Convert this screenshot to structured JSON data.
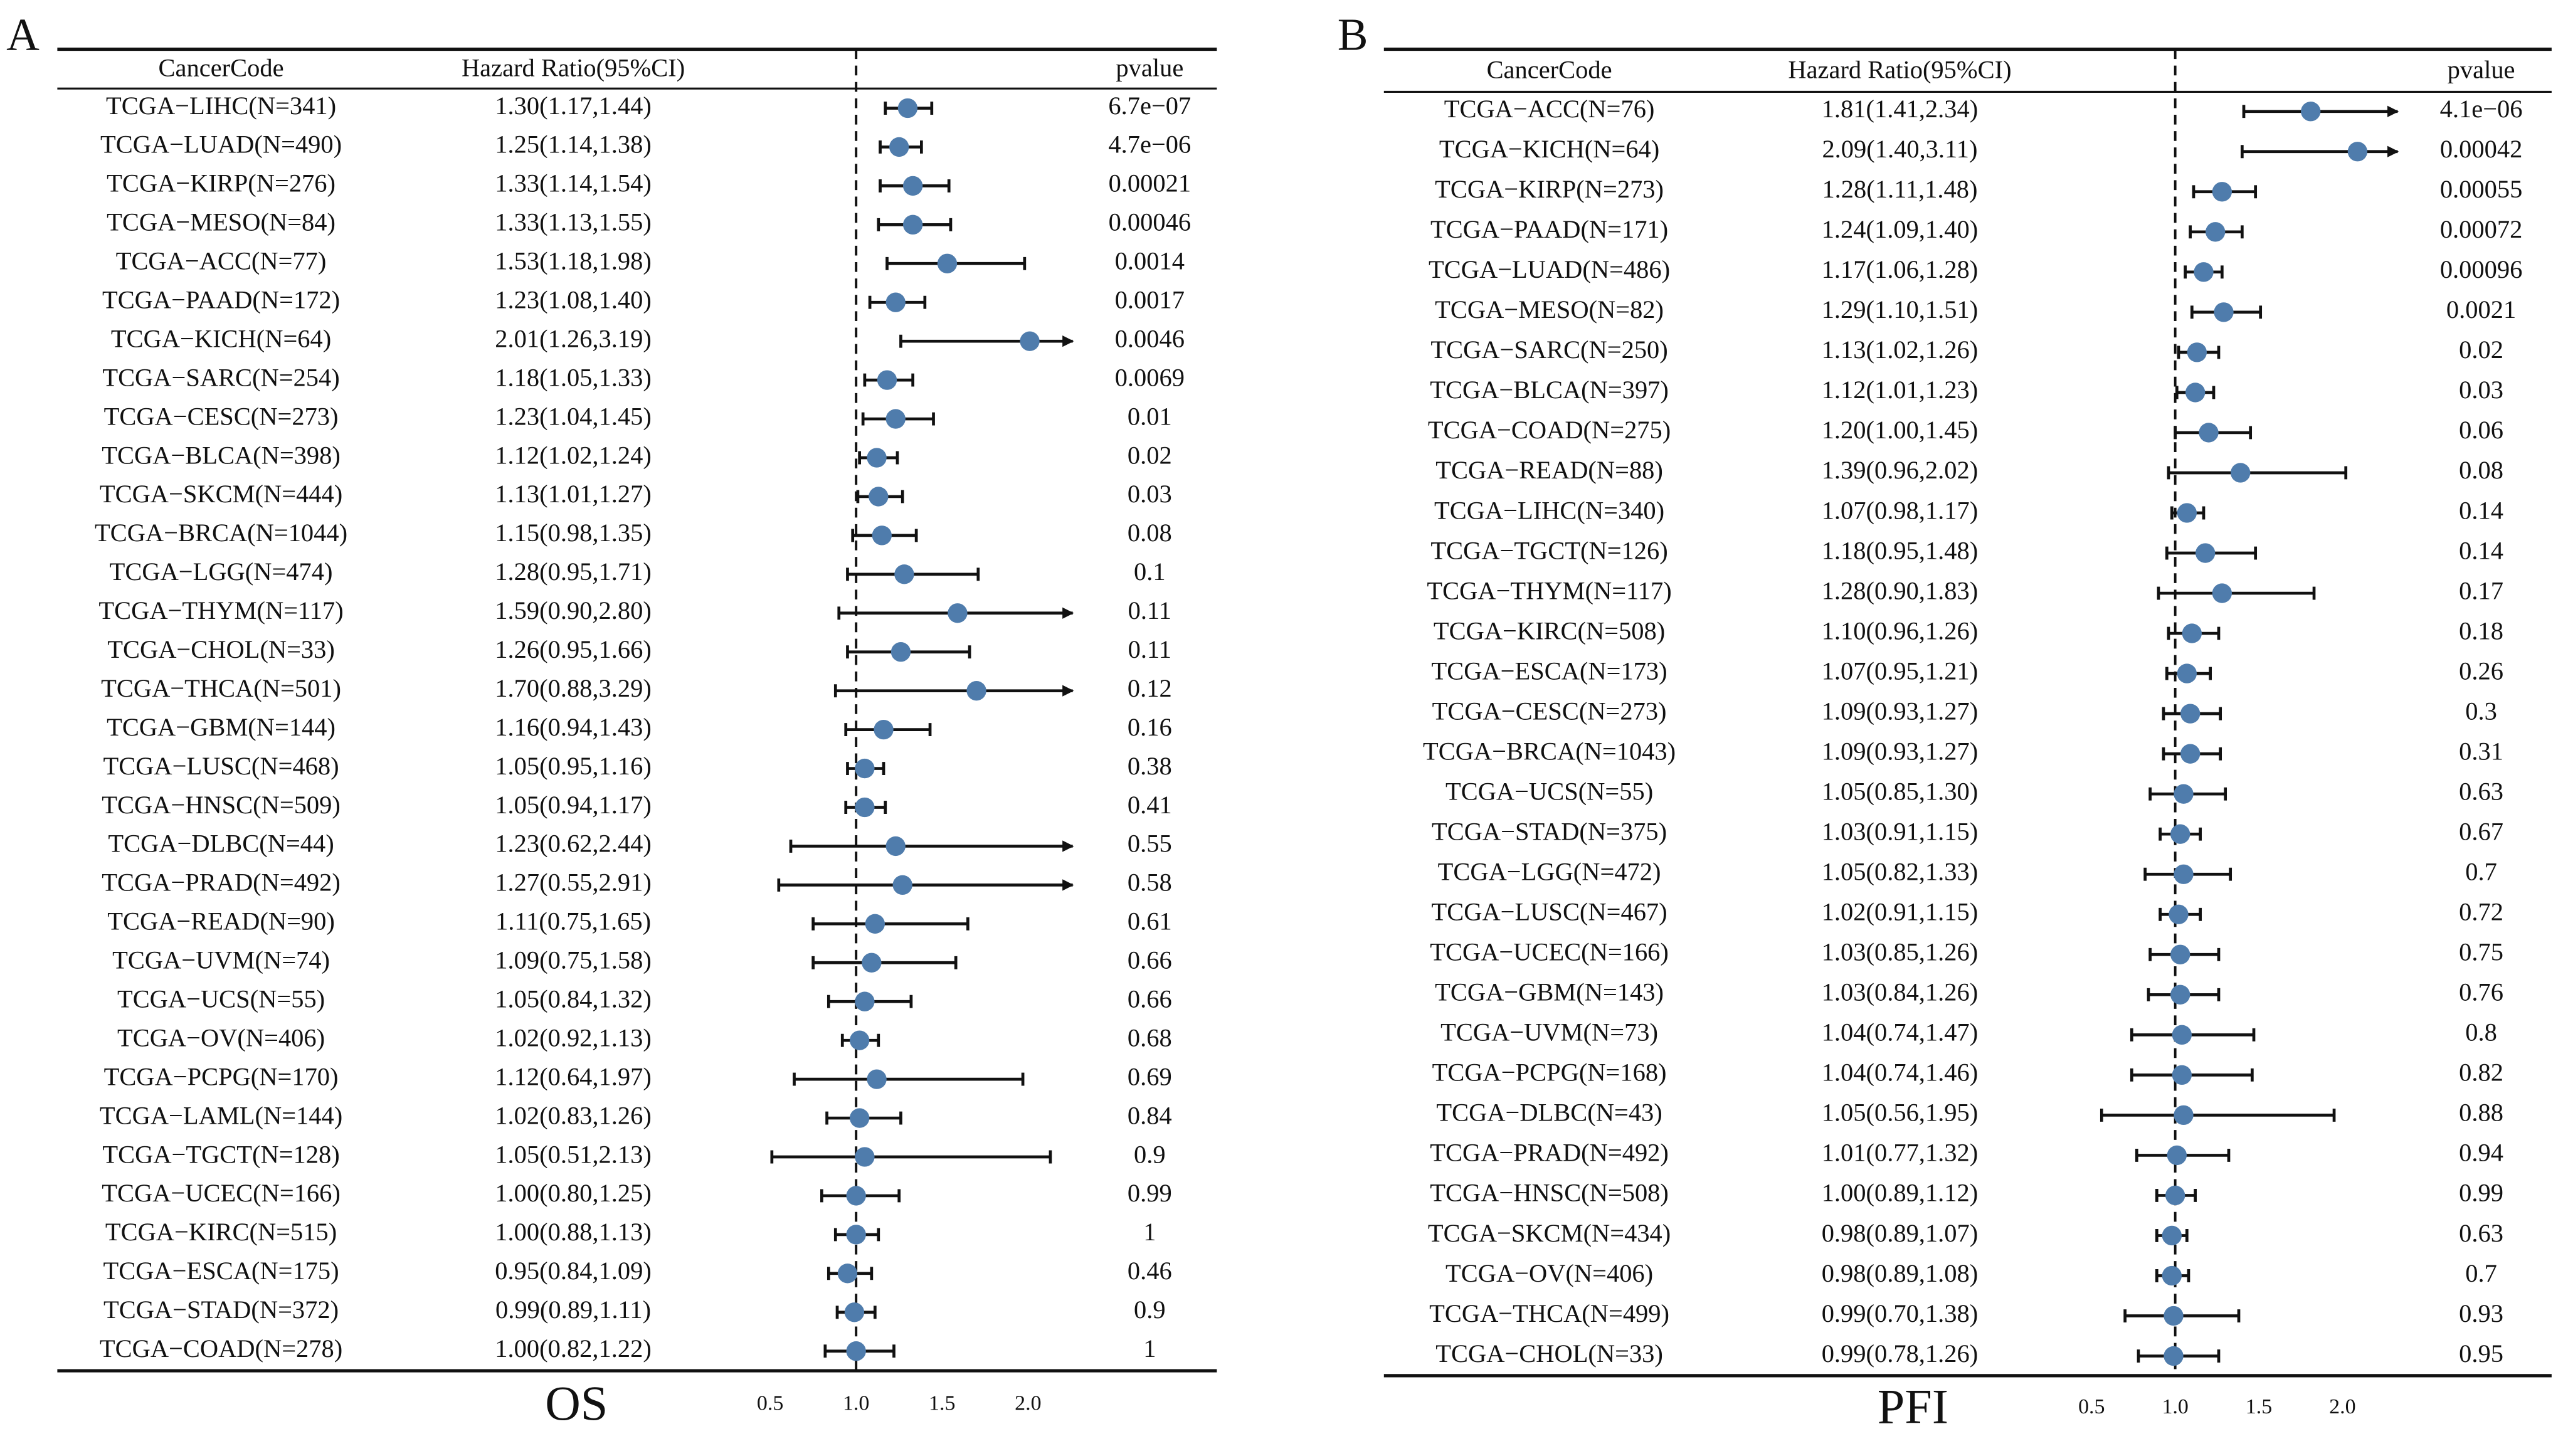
{
  "chart_data": [
    {
      "type": "forest",
      "panel_label": "A",
      "x_label": "OS",
      "columns": [
        "CancerCode",
        "Hazard Ratio(95%CI)",
        "pvalue"
      ],
      "categories": [
        "TCGA−LIHC(N=341)",
        "TCGA−LUAD(N=490)",
        "TCGA−KIRP(N=276)",
        "TCGA−MESO(N=84)",
        "TCGA−ACC(N=77)",
        "TCGA−PAAD(N=172)",
        "TCGA−KICH(N=64)",
        "TCGA−SARC(N=254)",
        "TCGA−CESC(N=273)",
        "TCGA−BLCA(N=398)",
        "TCGA−SKCM(N=444)",
        "TCGA−BRCA(N=1044)",
        "TCGA−LGG(N=474)",
        "TCGA−THYM(N=117)",
        "TCGA−CHOL(N=33)",
        "TCGA−THCA(N=501)",
        "TCGA−GBM(N=144)",
        "TCGA−LUSC(N=468)",
        "TCGA−HNSC(N=509)",
        "TCGA−DLBC(N=44)",
        "TCGA−PRAD(N=492)",
        "TCGA−READ(N=90)",
        "TCGA−UVM(N=74)",
        "TCGA−UCS(N=55)",
        "TCGA−OV(N=406)",
        "TCGA−PCPG(N=170)",
        "TCGA−LAML(N=144)",
        "TCGA−TGCT(N=128)",
        "TCGA−UCEC(N=166)",
        "TCGA−KIRC(N=515)",
        "TCGA−ESCA(N=175)",
        "TCGA−STAD(N=372)",
        "TCGA−COAD(N=278)"
      ],
      "values": [
        1.3,
        1.25,
        1.33,
        1.33,
        1.53,
        1.23,
        2.01,
        1.18,
        1.23,
        1.12,
        1.13,
        1.15,
        1.28,
        1.59,
        1.26,
        1.7,
        1.16,
        1.05,
        1.05,
        1.23,
        1.27,
        1.11,
        1.09,
        1.05,
        1.02,
        1.12,
        1.02,
        1.05,
        1.0,
        1.0,
        0.95,
        0.99,
        1.0
      ],
      "lower": [
        1.17,
        1.14,
        1.14,
        1.13,
        1.18,
        1.08,
        1.26,
        1.05,
        1.04,
        1.02,
        1.01,
        0.98,
        0.95,
        0.9,
        0.95,
        0.88,
        0.94,
        0.95,
        0.94,
        0.62,
        0.55,
        0.75,
        0.75,
        0.84,
        0.92,
        0.64,
        0.83,
        0.51,
        0.8,
        0.88,
        0.84,
        0.89,
        0.82
      ],
      "upper": [
        1.44,
        1.38,
        1.54,
        1.55,
        1.98,
        1.4,
        3.19,
        1.33,
        1.45,
        1.24,
        1.27,
        1.35,
        1.71,
        2.8,
        1.66,
        3.29,
        1.43,
        1.16,
        1.17,
        2.44,
        2.91,
        1.65,
        1.58,
        1.32,
        1.13,
        1.97,
        1.26,
        2.13,
        1.25,
        1.13,
        1.09,
        1.11,
        1.22
      ],
      "value_labels": [
        "1.30(1.17,1.44)",
        "1.25(1.14,1.38)",
        "1.33(1.14,1.54)",
        "1.33(1.13,1.55)",
        "1.53(1.18,1.98)",
        "1.23(1.08,1.40)",
        "2.01(1.26,3.19)",
        "1.18(1.05,1.33)",
        "1.23(1.04,1.45)",
        "1.12(1.02,1.24)",
        "1.13(1.01,1.27)",
        "1.15(0.98,1.35)",
        "1.28(0.95,1.71)",
        "1.59(0.90,2.80)",
        "1.26(0.95,1.66)",
        "1.70(0.88,3.29)",
        "1.16(0.94,1.43)",
        "1.05(0.95,1.16)",
        "1.05(0.94,1.17)",
        "1.23(0.62,2.44)",
        "1.27(0.55,2.91)",
        "1.11(0.75,1.65)",
        "1.09(0.75,1.58)",
        "1.05(0.84,1.32)",
        "1.02(0.92,1.13)",
        "1.12(0.64,1.97)",
        "1.02(0.83,1.26)",
        "1.05(0.51,2.13)",
        "1.00(0.80,1.25)",
        "1.00(0.88,1.13)",
        "0.95(0.84,1.09)",
        "0.99(0.89,1.11)",
        "1.00(0.82,1.22)"
      ],
      "pvalues": [
        "6.7e−07",
        "4.7e−06",
        "0.00021",
        "0.00046",
        "0.0014",
        "0.0017",
        "0.0046",
        "0.0069",
        "0.01",
        "0.02",
        "0.03",
        "0.08",
        "0.1",
        "0.11",
        "0.11",
        "0.12",
        "0.16",
        "0.38",
        "0.41",
        "0.55",
        "0.58",
        "0.61",
        "0.66",
        "0.66",
        "0.68",
        "0.69",
        "0.84",
        "0.9",
        "0.99",
        "1",
        "0.46",
        "0.9",
        "1"
      ],
      "color": "#4f7cac",
      "xlim": [
        0.45,
        2.26
      ],
      "xticks": [
        0.5,
        {
          "value": 1,
          "label": "1.0"
        },
        1.5,
        {
          "value": 2,
          "label": "2.0"
        }
      ],
      "refline": 1
    },
    {
      "type": "forest",
      "panel_label": "B",
      "x_label": "PFI",
      "columns": [
        "CancerCode",
        "Hazard Ratio(95%CI)",
        "pvalue"
      ],
      "categories": [
        "TCGA−ACC(N=76)",
        "TCGA−KICH(N=64)",
        "TCGA−KIRP(N=273)",
        "TCGA−PAAD(N=171)",
        "TCGA−LUAD(N=486)",
        "TCGA−MESO(N=82)",
        "TCGA−SARC(N=250)",
        "TCGA−BLCA(N=397)",
        "TCGA−COAD(N=275)",
        "TCGA−READ(N=88)",
        "TCGA−LIHC(N=340)",
        "TCGA−TGCT(N=126)",
        "TCGA−THYM(N=117)",
        "TCGA−KIRC(N=508)",
        "TCGA−ESCA(N=173)",
        "TCGA−CESC(N=273)",
        "TCGA−BRCA(N=1043)",
        "TCGA−UCS(N=55)",
        "TCGA−STAD(N=375)",
        "TCGA−LGG(N=472)",
        "TCGA−LUSC(N=467)",
        "TCGA−UCEC(N=166)",
        "TCGA−GBM(N=143)",
        "TCGA−UVM(N=73)",
        "TCGA−PCPG(N=168)",
        "TCGA−DLBC(N=43)",
        "TCGA−PRAD(N=492)",
        "TCGA−HNSC(N=508)",
        "TCGA−SKCM(N=434)",
        "TCGA−OV(N=406)",
        "TCGA−THCA(N=499)",
        "TCGA−CHOL(N=33)"
      ],
      "values": [
        1.81,
        2.09,
        1.28,
        1.24,
        1.17,
        1.29,
        1.13,
        1.12,
        1.2,
        1.39,
        1.07,
        1.18,
        1.28,
        1.1,
        1.07,
        1.09,
        1.09,
        1.05,
        1.03,
        1.05,
        1.02,
        1.03,
        1.03,
        1.04,
        1.04,
        1.05,
        1.01,
        1.0,
        0.98,
        0.98,
        0.99,
        0.99
      ],
      "lower": [
        1.41,
        1.4,
        1.11,
        1.09,
        1.06,
        1.1,
        1.02,
        1.01,
        1.0,
        0.96,
        0.98,
        0.95,
        0.9,
        0.96,
        0.95,
        0.93,
        0.93,
        0.85,
        0.91,
        0.82,
        0.91,
        0.85,
        0.84,
        0.74,
        0.74,
        0.56,
        0.77,
        0.89,
        0.89,
        0.89,
        0.7,
        0.78
      ],
      "upper": [
        2.34,
        3.11,
        1.48,
        1.4,
        1.28,
        1.51,
        1.26,
        1.23,
        1.45,
        2.02,
        1.17,
        1.48,
        1.83,
        1.26,
        1.21,
        1.27,
        1.27,
        1.3,
        1.15,
        1.33,
        1.15,
        1.26,
        1.26,
        1.47,
        1.46,
        1.95,
        1.32,
        1.12,
        1.07,
        1.08,
        1.38,
        1.26
      ],
      "value_labels": [
        "1.81(1.41,2.34)",
        "2.09(1.40,3.11)",
        "1.28(1.11,1.48)",
        "1.24(1.09,1.40)",
        "1.17(1.06,1.28)",
        "1.29(1.10,1.51)",
        "1.13(1.02,1.26)",
        "1.12(1.01,1.23)",
        "1.20(1.00,1.45)",
        "1.39(0.96,2.02)",
        "1.07(0.98,1.17)",
        "1.18(0.95,1.48)",
        "1.28(0.90,1.83)",
        "1.10(0.96,1.26)",
        "1.07(0.95,1.21)",
        "1.09(0.93,1.27)",
        "1.09(0.93,1.27)",
        "1.05(0.85,1.30)",
        "1.03(0.91,1.15)",
        "1.05(0.82,1.33)",
        "1.02(0.91,1.15)",
        "1.03(0.85,1.26)",
        "1.03(0.84,1.26)",
        "1.04(0.74,1.47)",
        "1.04(0.74,1.46)",
        "1.05(0.56,1.95)",
        "1.01(0.77,1.32)",
        "1.00(0.89,1.12)",
        "0.98(0.89,1.07)",
        "0.98(0.89,1.08)",
        "0.99(0.70,1.38)",
        "0.99(0.78,1.26)"
      ],
      "pvalues": [
        "4.1e−06",
        "0.00042",
        "0.00055",
        "0.00072",
        "0.00096",
        "0.0021",
        "0.02",
        "0.03",
        "0.06",
        "0.08",
        "0.14",
        "0.14",
        "0.17",
        "0.18",
        "0.26",
        "0.3",
        "0.31",
        "0.63",
        "0.67",
        "0.7",
        "0.72",
        "0.75",
        "0.76",
        "0.8",
        "0.82",
        "0.88",
        "0.94",
        "0.99",
        "0.63",
        "0.7",
        "0.93",
        "0.95"
      ],
      "color": "#4f7cac",
      "xlim": [
        0.45,
        2.33
      ],
      "xticks": [
        0.5,
        {
          "value": 1,
          "label": "1.0"
        },
        1.5,
        {
          "value": 2,
          "label": "2.0"
        }
      ],
      "refline": 1
    }
  ]
}
